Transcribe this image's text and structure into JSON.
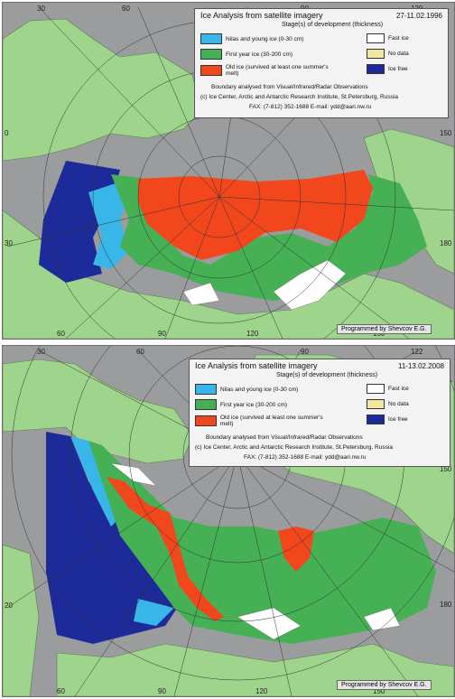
{
  "colors": {
    "nilas": "#38b6e8",
    "first_year": "#46b055",
    "old_ice": "#f2461c",
    "fast_ice": "#ffffff",
    "no_data": "#f2e7a0",
    "ice_free": "#1d2a9a",
    "land": "#9fd48c",
    "background": "#9a9c9e"
  },
  "top": {
    "title": "Ice Analysis from satellite imagery",
    "date": "27-11.02.1996",
    "subtitle": "Stage(s) of development (thickness)",
    "items": {
      "nilas": "Nilas and young ice (0-30 cm)",
      "first_year": "First year ice (30-200 cm)",
      "old_ice": "Old ice (survived at least one summer's melt)",
      "fast_ice": "Fast ice",
      "no_data": "No data",
      "ice_free": "Ice free"
    },
    "boundary": "Boundary analysed from Visual/Infrared/Radar Observations",
    "credit": "(c) Ice Center, Arctic and Antarctic Research Institute, St.Petersburg, Russia",
    "fax": "FAX: (7-812) 352-1688 E-mail: ydd@aari.nw.ru",
    "programmed": "Programmed by Shevcov E.G.",
    "ticks": {
      "t30": "30",
      "t60": "60",
      "t90": "90",
      "t120": "120",
      "b60": "60",
      "b90": "90",
      "b120": "120",
      "b150": "150",
      "l0": "0",
      "l30": "30",
      "r150": "150",
      "r180": "180"
    }
  },
  "bottom": {
    "title": "Ice Analysis from satellite imagery",
    "date": "11-13.02.2008",
    "subtitle": "Stage(s) of development (thickness)",
    "items": {
      "nilas": "Nilas and young ice (0-30 cm)",
      "first_year": "First year ice (30-200 cm)",
      "old_ice": "Old ice (survived at least one summer's melt)",
      "fast_ice": "Fast ice",
      "no_data": "No data",
      "ice_free": "Ice free"
    },
    "boundary": "Boundary analysed from Visual/Infrared/Radar Observations",
    "credit": "(c) Ice Center, Arctic and Antarctic Research Institute, St.Petersburg, Russia",
    "fax": "FAX: (7-812) 352-1688 E-mail: ydd@aari.nw.ru",
    "programmed": "Programmed by Shevcov E.G.",
    "ticks": {
      "t30": "30",
      "t60": "60",
      "t90": "90",
      "t122": "122",
      "b60": "60",
      "b90": "90",
      "b120": "120",
      "b150": "150",
      "l20": "20",
      "r150": "150",
      "r180": "180"
    }
  }
}
